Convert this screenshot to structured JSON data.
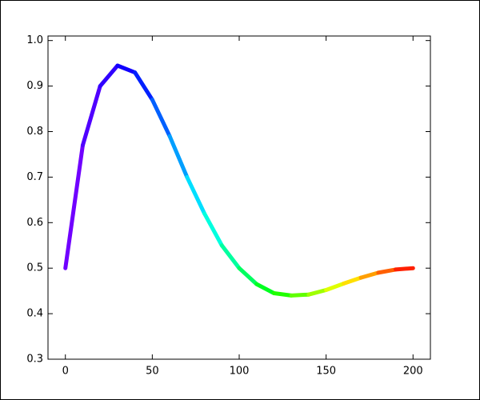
{
  "chart_data": {
    "type": "line",
    "x": [
      0,
      10,
      20,
      30,
      40,
      50,
      60,
      70,
      80,
      90,
      100,
      110,
      120,
      130,
      140,
      150,
      160,
      170,
      180,
      190,
      200
    ],
    "values": [
      0.5,
      0.77,
      0.9,
      0.945,
      0.93,
      0.87,
      0.79,
      0.7,
      0.62,
      0.55,
      0.5,
      0.465,
      0.445,
      0.44,
      0.442,
      0.452,
      0.466,
      0.479,
      0.49,
      0.497,
      0.5
    ],
    "colormap": [
      "#8000ff",
      "#0000ff",
      "#00ffff",
      "#00ff00",
      "#ffff00",
      "#ff0000"
    ],
    "xlim": [
      -10,
      210
    ],
    "ylim": [
      0.3,
      1.01
    ],
    "xticks": [
      0,
      50,
      100,
      150,
      200
    ],
    "yticks": [
      0.3,
      0.4,
      0.5,
      0.6,
      0.7,
      0.8,
      0.9,
      {
        "value": 1,
        "label": "1.0"
      }
    ],
    "grid": false
  }
}
